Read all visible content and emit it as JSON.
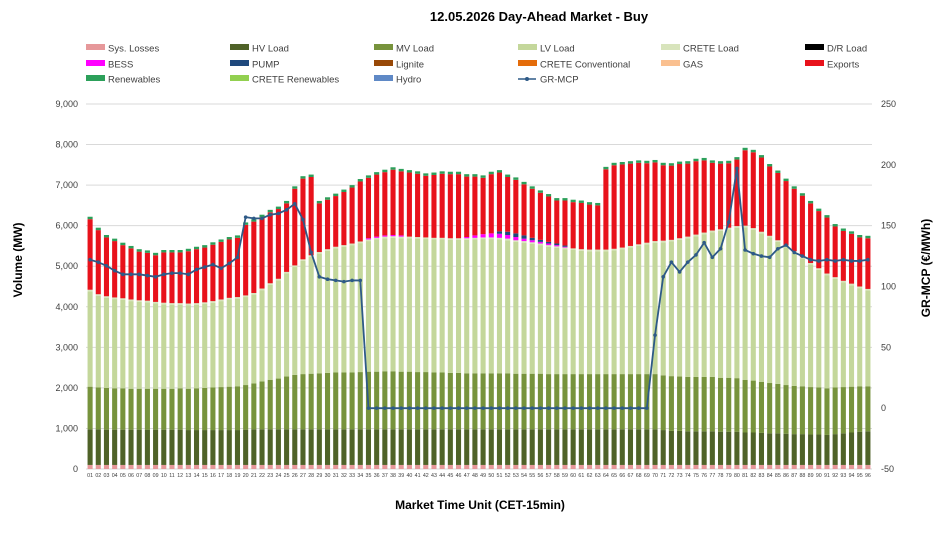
{
  "chart_data": {
    "type": "bar",
    "stacked": true,
    "title": "12.05.2026  Day-Ahead Market - Buy",
    "xlabel": "Market Time Unit (CET-15min)",
    "ylabel": "Volume (MW)",
    "y2label": "GR-MCP (€/MWh)",
    "ylim": [
      0,
      9000
    ],
    "yticks": [
      0,
      1000,
      2000,
      3000,
      4000,
      5000,
      6000,
      7000,
      8000,
      9000
    ],
    "ytick_labels": [
      "0",
      "1,000",
      "2,000",
      "3,000",
      "4,000",
      "5,000",
      "6,000",
      "7,000",
      "8,000",
      "9,000"
    ],
    "y2lim": [
      -50,
      250
    ],
    "y2ticks": [
      -50,
      0,
      50,
      100,
      150,
      200,
      250
    ],
    "y2tick_labels": [
      "-50",
      "0",
      "50",
      "100",
      "150",
      "200",
      "250"
    ],
    "grid": true,
    "legend_position": "top",
    "categories": [
      "01",
      "02",
      "03",
      "04",
      "05",
      "06",
      "07",
      "08",
      "09",
      "10",
      "11",
      "12",
      "13",
      "14",
      "15",
      "16",
      "17",
      "18",
      "19",
      "20",
      "21",
      "22",
      "23",
      "24",
      "25",
      "26",
      "27",
      "28",
      "29",
      "30",
      "31",
      "32",
      "33",
      "34",
      "35",
      "36",
      "37",
      "38",
      "39",
      "40",
      "41",
      "42",
      "43",
      "44",
      "45",
      "46",
      "47",
      "48",
      "49",
      "50",
      "51",
      "52",
      "53",
      "54",
      "55",
      "56",
      "57",
      "58",
      "59",
      "60",
      "61",
      "62",
      "63",
      "64",
      "65",
      "66",
      "67",
      "68",
      "69",
      "70",
      "71",
      "72",
      "73",
      "74",
      "75",
      "76",
      "77",
      "78",
      "79",
      "80",
      "81",
      "82",
      "83",
      "84",
      "85",
      "86",
      "87",
      "88",
      "89",
      "90",
      "91",
      "92",
      "93",
      "94",
      "95",
      "96"
    ],
    "legend": [
      {
        "name": "Sys. Losses",
        "color": "#e6989a",
        "kind": "box"
      },
      {
        "name": "HV Load",
        "color": "#4f6228",
        "kind": "box"
      },
      {
        "name": "MV Load",
        "color": "#77933c",
        "kind": "box"
      },
      {
        "name": "LV Load",
        "color": "#c4d79b",
        "kind": "box"
      },
      {
        "name": "CRETE Load",
        "color": "#d8e4bc",
        "kind": "box"
      },
      {
        "name": "D/R Load",
        "color": "#000000",
        "kind": "box"
      },
      {
        "name": "BESS",
        "color": "#ff00ff",
        "kind": "box"
      },
      {
        "name": "PUMP",
        "color": "#1f497d",
        "kind": "box"
      },
      {
        "name": "Lignite",
        "color": "#984807",
        "kind": "box"
      },
      {
        "name": "CRETE Conventional",
        "color": "#e46c0a",
        "kind": "box"
      },
      {
        "name": "GAS",
        "color": "#fac090",
        "kind": "box"
      },
      {
        "name": "Exports",
        "color": "#e8121b",
        "kind": "box"
      },
      {
        "name": "Renewables",
        "color": "#2ca05a",
        "kind": "box"
      },
      {
        "name": "CRETE Renewables",
        "color": "#92d050",
        "kind": "box"
      },
      {
        "name": "Hydro",
        "color": "#5f89c6",
        "kind": "box"
      },
      {
        "name": "GR-MCP",
        "color": "#2e5a87",
        "kind": "line"
      }
    ],
    "series_colors": {
      "sys_losses": "#e6989a",
      "hv_load": "#4f6228",
      "mv_load": "#77933c",
      "lv_load": "#c4d79b",
      "crete_load": "#d8e4bc",
      "bess": "#ff00ff",
      "pump": "#1f497d",
      "exports": "#e8121b",
      "renewables": "#2ca05a",
      "gr_mcp": "#2e5a87"
    },
    "series": {
      "sys_losses": [
        100,
        100,
        100,
        100,
        100,
        100,
        100,
        100,
        100,
        100,
        100,
        100,
        100,
        100,
        100,
        100,
        100,
        100,
        100,
        100,
        100,
        100,
        100,
        100,
        100,
        100,
        100,
        100,
        100,
        100,
        100,
        100,
        100,
        100,
        100,
        100,
        100,
        100,
        100,
        100,
        100,
        100,
        100,
        100,
        100,
        100,
        100,
        100,
        100,
        100,
        100,
        100,
        100,
        100,
        100,
        100,
        100,
        100,
        100,
        100,
        100,
        100,
        100,
        100,
        100,
        100,
        100,
        100,
        100,
        100,
        100,
        100,
        100,
        100,
        100,
        100,
        100,
        100,
        100,
        100,
        100,
        100,
        100,
        100,
        100,
        100,
        100,
        100,
        100,
        100,
        100,
        100,
        100,
        100,
        100,
        100
      ],
      "hv_load": [
        880,
        880,
        870,
        870,
        870,
        870,
        870,
        870,
        870,
        870,
        870,
        870,
        860,
        860,
        860,
        860,
        860,
        860,
        860,
        870,
        880,
        880,
        880,
        880,
        880,
        880,
        880,
        880,
        880,
        880,
        880,
        880,
        880,
        880,
        880,
        880,
        880,
        880,
        880,
        880,
        880,
        880,
        880,
        880,
        880,
        880,
        880,
        880,
        880,
        880,
        880,
        880,
        880,
        880,
        880,
        880,
        880,
        880,
        880,
        880,
        880,
        880,
        880,
        880,
        880,
        880,
        880,
        880,
        880,
        880,
        860,
        840,
        840,
        830,
        830,
        830,
        830,
        820,
        820,
        820,
        800,
        800,
        790,
        780,
        780,
        770,
        760,
        760,
        750,
        750,
        740,
        760,
        780,
        800,
        820,
        830
      ],
      "mv_load": [
        1050,
        1030,
        1030,
        1020,
        1020,
        1010,
        1010,
        1010,
        1010,
        1010,
        1010,
        1020,
        1020,
        1030,
        1040,
        1050,
        1060,
        1070,
        1080,
        1100,
        1130,
        1180,
        1220,
        1250,
        1300,
        1340,
        1360,
        1370,
        1380,
        1390,
        1400,
        1400,
        1400,
        1410,
        1420,
        1420,
        1430,
        1430,
        1420,
        1420,
        1410,
        1410,
        1400,
        1400,
        1390,
        1390,
        1380,
        1380,
        1380,
        1380,
        1380,
        1380,
        1370,
        1370,
        1370,
        1370,
        1360,
        1360,
        1360,
        1360,
        1360,
        1360,
        1360,
        1360,
        1360,
        1360,
        1360,
        1360,
        1360,
        1360,
        1350,
        1350,
        1340,
        1340,
        1340,
        1340,
        1340,
        1330,
        1330,
        1320,
        1300,
        1280,
        1260,
        1240,
        1220,
        1200,
        1190,
        1180,
        1170,
        1160,
        1150,
        1150,
        1140,
        1130,
        1120,
        1110
      ],
      "lv_load": [
        2350,
        2260,
        2220,
        2200,
        2180,
        2160,
        2140,
        2130,
        2100,
        2080,
        2070,
        2060,
        2060,
        2060,
        2070,
        2090,
        2120,
        2150,
        2160,
        2170,
        2190,
        2250,
        2340,
        2420,
        2540,
        2660,
        2790,
        2880,
        2950,
        3010,
        3060,
        3100,
        3140,
        3180,
        3220,
        3260,
        3280,
        3290,
        3290,
        3290,
        3290,
        3280,
        3280,
        3280,
        3280,
        3280,
        3290,
        3300,
        3310,
        3310,
        3300,
        3280,
        3250,
        3230,
        3200,
        3170,
        3140,
        3110,
        3080,
        3060,
        3040,
        3030,
        3030,
        3030,
        3050,
        3080,
        3120,
        3160,
        3200,
        3240,
        3280,
        3320,
        3370,
        3420,
        3470,
        3520,
        3570,
        3620,
        3660,
        3710,
        3760,
        3720,
        3660,
        3590,
        3500,
        3400,
        3280,
        3150,
        3020,
        2900,
        2790,
        2680,
        2580,
        2500,
        2420,
        2360
      ],
      "crete_load": [
        40,
        40,
        40,
        40,
        40,
        40,
        40,
        40,
        40,
        40,
        40,
        40,
        40,
        40,
        40,
        40,
        40,
        40,
        40,
        40,
        40,
        40,
        40,
        40,
        40,
        40,
        40,
        40,
        40,
        40,
        40,
        40,
        40,
        40,
        40,
        40,
        40,
        40,
        40,
        40,
        40,
        40,
        40,
        40,
        40,
        40,
        40,
        40,
        40,
        40,
        40,
        40,
        40,
        40,
        40,
        40,
        40,
        40,
        40,
        40,
        40,
        40,
        40,
        40,
        40,
        40,
        40,
        40,
        40,
        40,
        40,
        40,
        40,
        40,
        40,
        40,
        40,
        40,
        40,
        40,
        40,
        40,
        40,
        40,
        40,
        40,
        40,
        40,
        40,
        40,
        40,
        40,
        40,
        40,
        40,
        40
      ],
      "bess": [
        0,
        0,
        0,
        0,
        0,
        0,
        0,
        0,
        0,
        0,
        0,
        0,
        0,
        0,
        0,
        0,
        0,
        0,
        0,
        0,
        0,
        0,
        0,
        0,
        0,
        0,
        0,
        0,
        0,
        0,
        0,
        0,
        0,
        0,
        30,
        30,
        30,
        30,
        30,
        0,
        0,
        0,
        0,
        0,
        0,
        0,
        30,
        60,
        80,
        100,
        100,
        90,
        80,
        60,
        50,
        40,
        40,
        30,
        20,
        0,
        0,
        0,
        0,
        0,
        0,
        0,
        0,
        0,
        0,
        0,
        0,
        0,
        0,
        0,
        0,
        0,
        0,
        0,
        0,
        0,
        0,
        0,
        0,
        0,
        0,
        0,
        0,
        0,
        0,
        0,
        0,
        0,
        0,
        0,
        0,
        0
      ],
      "pump": [
        0,
        0,
        0,
        0,
        0,
        0,
        0,
        0,
        0,
        0,
        0,
        0,
        0,
        0,
        0,
        0,
        0,
        0,
        0,
        0,
        0,
        0,
        0,
        0,
        0,
        0,
        0,
        0,
        0,
        0,
        0,
        0,
        0,
        0,
        0,
        0,
        0,
        0,
        0,
        0,
        0,
        0,
        0,
        0,
        0,
        0,
        0,
        0,
        0,
        0,
        60,
        80,
        90,
        80,
        60,
        50,
        40,
        40,
        30,
        0,
        0,
        0,
        0,
        0,
        0,
        0,
        0,
        0,
        0,
        0,
        0,
        0,
        0,
        0,
        0,
        0,
        0,
        0,
        0,
        0,
        0,
        0,
        0,
        0,
        0,
        0,
        0,
        0,
        0,
        0,
        0,
        0,
        0,
        0,
        0,
        0
      ],
      "exports": [
        1740,
        1580,
        1450,
        1390,
        1310,
        1260,
        1200,
        1180,
        1150,
        1240,
        1250,
        1250,
        1290,
        1330,
        1350,
        1390,
        1420,
        1440,
        1460,
        1740,
        1760,
        1760,
        1750,
        1720,
        1690,
        1890,
        1990,
        1930,
        1200,
        1220,
        1250,
        1310,
        1380,
        1480,
        1490,
        1530,
        1560,
        1610,
        1580,
        1580,
        1560,
        1520,
        1550,
        1580,
        1580,
        1580,
        1490,
        1450,
        1390,
        1460,
        1450,
        1350,
        1320,
        1260,
        1210,
        1160,
        1120,
        1060,
        1110,
        1140,
        1140,
        1110,
        1090,
        1980,
        2060,
        2050,
        2030,
        2010,
        1960,
        1940,
        1860,
        1830,
        1830,
        1800,
        1810,
        1780,
        1670,
        1620,
        1590,
        1640,
        1860,
        1870,
        1830,
        1710,
        1660,
        1590,
        1540,
        1510,
        1470,
        1410,
        1380,
        1250,
        1230,
        1230,
        1210,
        1250
      ],
      "renewables": [
        60,
        60,
        60,
        60,
        60,
        60,
        60,
        60,
        60,
        60,
        60,
        60,
        60,
        60,
        60,
        60,
        60,
        60,
        60,
        60,
        60,
        60,
        60,
        60,
        60,
        60,
        60,
        60,
        60,
        60,
        60,
        60,
        60,
        60,
        60,
        60,
        60,
        60,
        60,
        60,
        60,
        60,
        60,
        60,
        60,
        60,
        60,
        60,
        60,
        60,
        60,
        60,
        60,
        60,
        60,
        60,
        60,
        60,
        60,
        60,
        60,
        60,
        60,
        60,
        60,
        60,
        60,
        60,
        60,
        60,
        60,
        60,
        60,
        60,
        60,
        60,
        60,
        60,
        60,
        60,
        60,
        60,
        60,
        60,
        60,
        60,
        60,
        60,
        60,
        60,
        60,
        60,
        60,
        60,
        60,
        60
      ],
      "gr_mcp": [
        122,
        120,
        117,
        113,
        110,
        110,
        110,
        109,
        108,
        110,
        111,
        111,
        110,
        114,
        116,
        118,
        115,
        119,
        124,
        157,
        156,
        156,
        159,
        160,
        163,
        168,
        155,
        128,
        108,
        106,
        105,
        104,
        105,
        105,
        0,
        0,
        0,
        0,
        0,
        0,
        0,
        0,
        0,
        0,
        0,
        0,
        0,
        0,
        0,
        0,
        0,
        0,
        0,
        0,
        0,
        0,
        0,
        0,
        0,
        0,
        0,
        0,
        0,
        0,
        0,
        0,
        0,
        0,
        0,
        60,
        108,
        120,
        112,
        120,
        126,
        136,
        124,
        131,
        153,
        197,
        130,
        127,
        125,
        124,
        131,
        134,
        128,
        125,
        122,
        121,
        122,
        121,
        122,
        121,
        121,
        122
      ]
    }
  }
}
